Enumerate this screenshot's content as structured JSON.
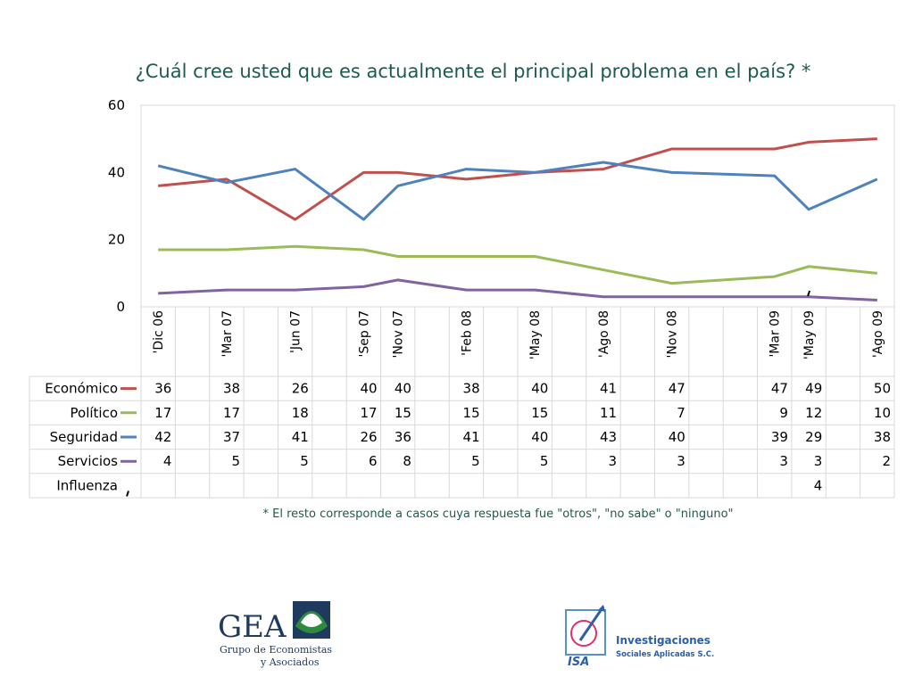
{
  "title": "¿Cuál cree usted que es actualmente el principal problema en el país? *",
  "footnote": "* El resto corresponde a casos cuya respuesta fue \"otros\", \"no sabe\" o \"ninguno\"",
  "logos": {
    "gea": {
      "name": "GEA",
      "subtitle_line1": "Grupo de Economistas",
      "subtitle_line2": "y Asociados"
    },
    "isa": {
      "mark": "ISA",
      "line1": "Investigaciones",
      "line2": "Sociales Aplicadas S.C."
    }
  },
  "chart_data": {
    "type": "line",
    "title": "¿Cuál cree usted que es actualmente el principal problema en el país? *",
    "ylim": [
      0,
      60
    ],
    "yticks": [
      0,
      20,
      40,
      60
    ],
    "grid": false,
    "categories": [
      "'Dic 06",
      "",
      "'Mar 07",
      "",
      "'Jun 07",
      "",
      "'Sep 07",
      "'Nov 07",
      "",
      "'Feb 08",
      "",
      "'May 08",
      "",
      "'Ago 08",
      "",
      "'Nov 08",
      "",
      "",
      "'Mar 09",
      "'May 09",
      "",
      "'Ago 09"
    ],
    "series": [
      {
        "name": "Económico",
        "color": "#c0504d",
        "values": [
          36,
          null,
          38,
          null,
          26,
          null,
          40,
          40,
          null,
          38,
          null,
          40,
          null,
          41,
          null,
          47,
          null,
          null,
          47,
          49,
          null,
          50
        ]
      },
      {
        "name": "Político",
        "color": "#9bbb59",
        "values": [
          17,
          null,
          17,
          null,
          18,
          null,
          17,
          15,
          null,
          15,
          null,
          15,
          null,
          11,
          null,
          7,
          null,
          null,
          9,
          12,
          null,
          10
        ]
      },
      {
        "name": "Seguridad",
        "color": "#4f81bd",
        "values": [
          42,
          null,
          37,
          null,
          41,
          null,
          26,
          36,
          null,
          41,
          null,
          40,
          null,
          43,
          null,
          40,
          null,
          null,
          39,
          29,
          null,
          38
        ]
      },
      {
        "name": "Servicios",
        "color": "#8064a2",
        "values": [
          4,
          null,
          5,
          null,
          5,
          null,
          6,
          8,
          null,
          5,
          null,
          5,
          null,
          3,
          null,
          3,
          null,
          null,
          3,
          3,
          null,
          2
        ]
      },
      {
        "name": "Influenza",
        "color": "#000000",
        "values": [
          null,
          null,
          null,
          null,
          null,
          null,
          null,
          null,
          null,
          null,
          null,
          null,
          null,
          null,
          null,
          null,
          null,
          null,
          null,
          4,
          null,
          null
        ]
      }
    ]
  }
}
